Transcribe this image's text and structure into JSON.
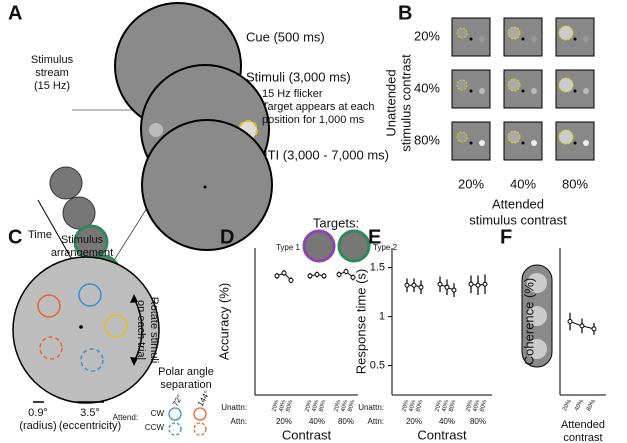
{
  "panels": {
    "a": {
      "letter": "A",
      "stream": [
        "Stimulus",
        "stream",
        "(15 Hz)"
      ],
      "time": "Time",
      "dots": "...",
      "cue": "Cue (500 ms)",
      "stimuli": "Stimuli (3,000 ms)",
      "flicker": "15 Hz flicker",
      "target_note": [
        "Target appears at each",
        "position for 1,000 ms"
      ],
      "iti": "ITI (3,000 - 7,000 ms)",
      "targets": "Targets:",
      "type1": "Type 1",
      "type2": "Type 2"
    },
    "b": {
      "letter": "B",
      "rows": [
        "20%",
        "40%",
        "80%"
      ],
      "cols": [
        "20%",
        "40%",
        "80%"
      ],
      "ylabel": [
        "Unattended",
        "stimulus contrast"
      ],
      "xlabel": [
        "Attended",
        "stimulus contrast"
      ]
    },
    "c": {
      "letter": "C",
      "title": [
        "Stimulus",
        "arrangement"
      ],
      "rotate": [
        "Rotate stimuli",
        "on each trial"
      ],
      "radius": [
        "0.9°",
        "(radius)"
      ],
      "ecc": [
        "3.5°",
        "(eccentricity)"
      ],
      "sep": [
        "Polar angle",
        "separation"
      ],
      "attend": "Attend:",
      "cw": "CW",
      "ccw": "CCW",
      "deg72": "72°",
      "deg144": "144°"
    },
    "d": {
      "letter": "D"
    },
    "e": {
      "letter": "E"
    },
    "f": {
      "letter": "F"
    }
  },
  "chart_data": [
    {
      "type": "grouped-line",
      "ylabel": "Accuracy (%)",
      "xlabel": "Contrast",
      "row_labels": [
        "Unattn:",
        "Attn:"
      ],
      "groups": [
        "20%",
        "40%",
        "80%"
      ],
      "categories": [
        "20%",
        "40%",
        "80%"
      ],
      "ylim": [
        0,
        100
      ],
      "color": "#000000",
      "series": [
        {
          "values": [
            81,
            83,
            78
          ],
          "errors": [
            2,
            2,
            2
          ]
        },
        {
          "values": [
            81,
            82,
            81
          ],
          "errors": [
            2,
            2,
            2
          ]
        },
        {
          "values": [
            82,
            84,
            80
          ],
          "errors": [
            2,
            2,
            2
          ]
        }
      ]
    },
    {
      "type": "grouped-line",
      "ylabel": "Response time (s)",
      "xlabel": "Contrast",
      "row_labels": [
        "Unattn:",
        "Attn:"
      ],
      "groups": [
        "20%",
        "40%",
        "80%"
      ],
      "categories": [
        "20%",
        "40%",
        "80%"
      ],
      "ylim": [
        0.2,
        1.7
      ],
      "yticks": [
        0.5,
        1,
        1.5
      ],
      "color": "#000000",
      "series": [
        {
          "values": [
            1.32,
            1.32,
            1.3
          ],
          "errors": [
            0.07,
            0.07,
            0.07
          ]
        },
        {
          "values": [
            1.33,
            1.3,
            1.27
          ],
          "errors": [
            0.08,
            0.08,
            0.07
          ]
        },
        {
          "values": [
            1.33,
            1.32,
            1.33
          ],
          "errors": [
            0.09,
            0.1,
            0.1
          ]
        }
      ]
    },
    {
      "type": "line",
      "ylabel": "Coherence (%)",
      "xlabel": [
        "Attended",
        "contrast"
      ],
      "categories": [
        "20%",
        "40%",
        "80%"
      ],
      "ylim": [
        0,
        100
      ],
      "color": "#000000",
      "values": [
        50,
        47,
        45
      ],
      "errors": [
        6,
        5,
        4
      ]
    }
  ]
}
